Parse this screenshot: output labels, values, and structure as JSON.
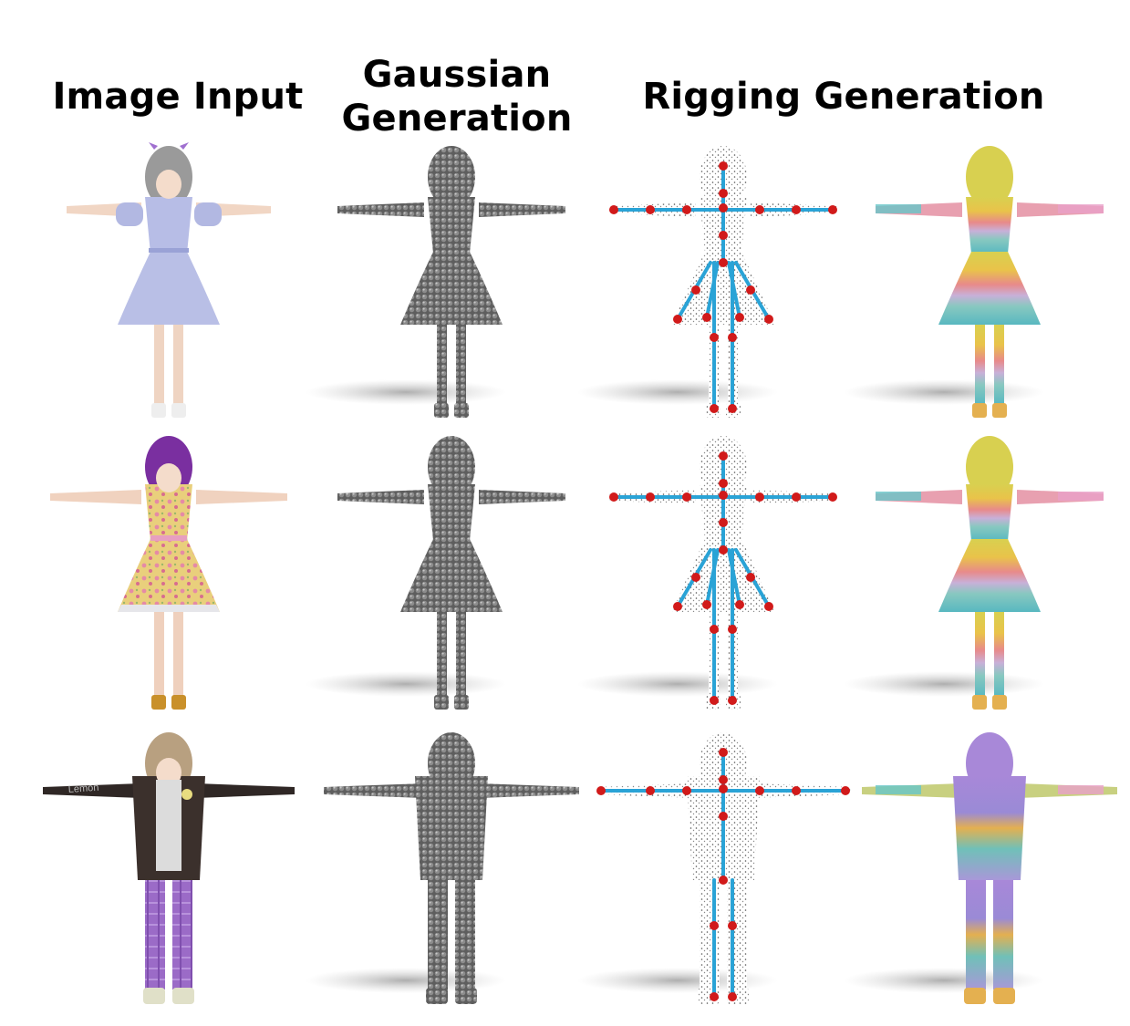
{
  "headers": {
    "image_input": "Image Input",
    "gaussian_line1": "Gaussian",
    "gaussian_line2": "Generation",
    "rigging": "Rigging Generation"
  },
  "rows": [
    {
      "character": "lavender-dress-girl",
      "dress_color": "#b9bfe6",
      "hair_color": "#9a9a9a",
      "shoe_color": "#eeeeee",
      "accent": "#a070d0"
    },
    {
      "character": "floral-dress-girl",
      "dress_color": "#e8cf82",
      "hair_color": "#7a2fa0",
      "shoe_color": "#c9902a",
      "accent": "#e78fb0"
    },
    {
      "character": "jacket-boy",
      "dress_color": "#3b302c",
      "hair_color": "#b8a080",
      "shoe_color": "#e0e0c8",
      "accent": "#9b6ac4"
    }
  ],
  "colors": {
    "gaussian": "#6e6e6e",
    "joint": "#d11a1a",
    "bone": "#2aa3d6",
    "points": "#777777"
  },
  "jacket_text": "Lemon"
}
